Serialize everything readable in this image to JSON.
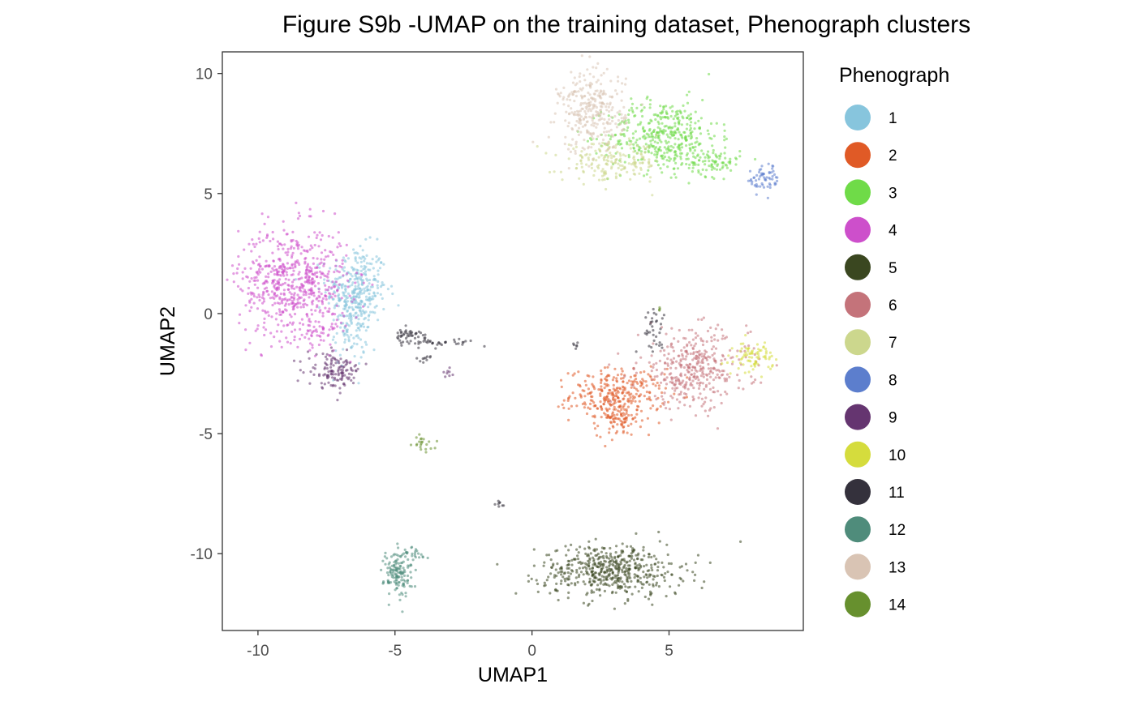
{
  "chart_data": {
    "type": "scatter",
    "title": "Figure S9b -UMAP on the training dataset, Phenograph clusters",
    "xlabel": "UMAP1",
    "ylabel": "UMAP2",
    "xlim": [
      -11.3,
      9.9
    ],
    "ylim": [
      -13.2,
      10.9
    ],
    "x_ticks": [
      -10,
      -5,
      0,
      5
    ],
    "x_tick_labels": [
      "-10",
      "-5",
      "0",
      "5"
    ],
    "y_ticks": [
      10,
      5,
      0,
      -5,
      -10
    ],
    "y_tick_labels": [
      "10",
      "5",
      "0",
      "-5",
      "-10"
    ],
    "grid": false,
    "legend": {
      "title": "Phenograph",
      "placement": "right",
      "entries": [
        {
          "label": "1",
          "color": "#87C5DD"
        },
        {
          "label": "2",
          "color": "#E05A26"
        },
        {
          "label": "3",
          "color": "#6FDB48"
        },
        {
          "label": "4",
          "color": "#CD4FCB"
        },
        {
          "label": "5",
          "color": "#3A4720"
        },
        {
          "label": "6",
          "color": "#C4737A"
        },
        {
          "label": "7",
          "color": "#CCD78D"
        },
        {
          "label": "8",
          "color": "#5C7ECD"
        },
        {
          "label": "9",
          "color": "#653570"
        },
        {
          "label": "10",
          "color": "#D5DC3D"
        },
        {
          "label": "11",
          "color": "#34313C"
        },
        {
          "label": "12",
          "color": "#4F8C7B"
        },
        {
          "label": "13",
          "color": "#D9C4B4"
        },
        {
          "label": "14",
          "color": "#67902E"
        }
      ]
    },
    "series": [
      {
        "label": "1",
        "color": "#87C5DD",
        "blobs": [
          {
            "x": -6.4,
            "y": 1.0,
            "sx": 0.55,
            "sy": 0.9,
            "n": 320
          },
          {
            "x": -6.6,
            "y": -0.6,
            "sx": 0.3,
            "sy": 0.8,
            "n": 90
          }
        ]
      },
      {
        "label": "2",
        "color": "#E05A26",
        "blobs": [
          {
            "x": 3.1,
            "y": -3.4,
            "sx": 0.85,
            "sy": 0.55,
            "n": 300
          },
          {
            "x": 3.2,
            "y": -4.4,
            "sx": 0.4,
            "sy": 0.35,
            "n": 70
          }
        ]
      },
      {
        "label": "3",
        "color": "#6FDB48",
        "blobs": [
          {
            "x": 4.8,
            "y": 7.4,
            "sx": 1.0,
            "sy": 0.75,
            "n": 420
          },
          {
            "x": 6.7,
            "y": 6.3,
            "sx": 0.45,
            "sy": 0.3,
            "n": 80
          }
        ]
      },
      {
        "label": "4",
        "color": "#CD4FCB",
        "blobs": [
          {
            "x": -8.7,
            "y": 1.3,
            "sx": 1.0,
            "sy": 1.15,
            "n": 620
          },
          {
            "x": -7.8,
            "y": -0.8,
            "sx": 0.35,
            "sy": 0.25,
            "n": 40
          }
        ]
      },
      {
        "label": "5",
        "color": "#3A4720",
        "blobs": [
          {
            "x": 2.9,
            "y": -10.7,
            "sx": 1.3,
            "sy": 0.55,
            "n": 520
          }
        ]
      },
      {
        "label": "6",
        "color": "#C4737A",
        "blobs": [
          {
            "x": 5.9,
            "y": -2.3,
            "sx": 1.0,
            "sy": 0.8,
            "n": 380
          }
        ]
      },
      {
        "label": "7",
        "color": "#CCD78D",
        "blobs": [
          {
            "x": 2.9,
            "y": 6.3,
            "sx": 0.9,
            "sy": 0.4,
            "n": 180
          }
        ]
      },
      {
        "label": "8",
        "color": "#5C7ECD",
        "blobs": [
          {
            "x": 8.5,
            "y": 5.6,
            "sx": 0.3,
            "sy": 0.3,
            "n": 60
          }
        ]
      },
      {
        "label": "9",
        "color": "#653570",
        "blobs": [
          {
            "x": -7.2,
            "y": -2.4,
            "sx": 0.5,
            "sy": 0.35,
            "n": 130
          },
          {
            "x": -3.1,
            "y": -2.5,
            "sx": 0.08,
            "sy": 0.1,
            "n": 8
          }
        ]
      },
      {
        "label": "10",
        "color": "#D5DC3D",
        "blobs": [
          {
            "x": 8.1,
            "y": -1.8,
            "sx": 0.35,
            "sy": 0.3,
            "n": 80
          }
        ]
      },
      {
        "label": "11",
        "color": "#34313C",
        "blobs": [
          {
            "x": -4.5,
            "y": -0.9,
            "sx": 0.35,
            "sy": 0.15,
            "n": 45
          },
          {
            "x": -3.3,
            "y": -1.2,
            "sx": 0.6,
            "sy": 0.08,
            "n": 35
          },
          {
            "x": -3.9,
            "y": -1.9,
            "sx": 0.12,
            "sy": 0.1,
            "n": 10
          },
          {
            "x": 4.4,
            "y": -0.6,
            "sx": 0.25,
            "sy": 0.4,
            "n": 35
          },
          {
            "x": -1.2,
            "y": -7.9,
            "sx": 0.08,
            "sy": 0.08,
            "n": 8
          },
          {
            "x": 1.6,
            "y": -1.3,
            "sx": 0.1,
            "sy": 0.1,
            "n": 6
          }
        ]
      },
      {
        "label": "12",
        "color": "#4F8C7B",
        "blobs": [
          {
            "x": -4.9,
            "y": -10.8,
            "sx": 0.25,
            "sy": 0.5,
            "n": 140
          },
          {
            "x": -4.3,
            "y": -10.1,
            "sx": 0.3,
            "sy": 0.2,
            "n": 25
          }
        ]
      },
      {
        "label": "13",
        "color": "#D9C4B4",
        "blobs": [
          {
            "x": 2.2,
            "y": 8.4,
            "sx": 0.6,
            "sy": 0.85,
            "n": 300
          }
        ]
      },
      {
        "label": "14",
        "color": "#67902E",
        "blobs": [
          {
            "x": -4.0,
            "y": -5.4,
            "sx": 0.18,
            "sy": 0.15,
            "n": 22
          },
          {
            "x": 4.7,
            "y": 0.2,
            "sx": 0.05,
            "sy": 0.05,
            "n": 4
          }
        ]
      }
    ]
  }
}
